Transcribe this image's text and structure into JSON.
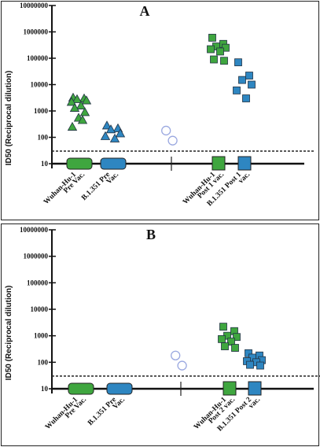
{
  "chart_data": [
    {
      "type": "scatter",
      "panel_label": "A",
      "ylabel": "ID50 (Reciprocal dilution)",
      "y_scale": "log",
      "ylim": [
        10,
        10000000
      ],
      "yticks": [
        "10",
        "100",
        "1000",
        "10000",
        "100000",
        "1000000",
        "10000000"
      ],
      "threshold": 30,
      "groups": [
        {
          "label": [
            "Wuhan-Hu-1",
            "Pre Vac."
          ],
          "color": "#3fa63f",
          "marker": "triangle",
          "pos": 1,
          "values": [
            3200,
            3000,
            2800,
            2500,
            2200,
            1600,
            1300,
            900,
            550,
            450,
            250
          ]
        },
        {
          "label": [
            "B.1.351 Pre",
            "Vac."
          ],
          "color": "#2e86c1",
          "marker": "triangle",
          "pos": 2,
          "values": [
            280,
            220,
            200,
            140,
            110,
            90
          ]
        },
        {
          "label": [],
          "color": "#9aa8e0",
          "marker": "open-circle",
          "pos": 3,
          "values": [
            180,
            75
          ]
        },
        {
          "label": [
            "Wuhan-Hu-1",
            "Post 1 vac."
          ],
          "color": "#3fa63f",
          "marker": "square",
          "pos": 4,
          "values": [
            600000,
            350000,
            280000,
            250000,
            220000,
            180000,
            90000,
            80000
          ]
        },
        {
          "label": [
            "B.1.351 Post 1",
            "vac."
          ],
          "color": "#2e86c1",
          "marker": "square",
          "pos": 5,
          "values": [
            70000,
            22000,
            15000,
            10000,
            6000,
            3000
          ]
        }
      ]
    },
    {
      "type": "scatter",
      "panel_label": "B",
      "ylabel": "ID50 (Reciprocal dilution)",
      "y_scale": "log",
      "ylim": [
        10,
        10000000
      ],
      "yticks": [
        "10",
        "100",
        "1000",
        "10000",
        "100000",
        "1000000",
        "10000000"
      ],
      "threshold": 30,
      "groups": [
        {
          "label": [
            "Wuhan-Hu-1",
            "Pre Vac."
          ],
          "color": "#3fa63f",
          "marker": "none",
          "pos": 1,
          "values": []
        },
        {
          "label": [
            "B.1.351 Pre",
            "Vac."
          ],
          "color": "#2e86c1",
          "marker": "none",
          "pos": 2,
          "values": []
        },
        {
          "label": [],
          "color": "#9aa8e0",
          "marker": "open-circle",
          "pos": 3,
          "values": [
            180,
            75
          ]
        },
        {
          "label": [
            "Wuhan-Hu-1",
            "Post 2 vac."
          ],
          "color": "#3fa63f",
          "marker": "square",
          "pos": 4,
          "values": [
            2200,
            1500,
            1000,
            900,
            750,
            600,
            400,
            350
          ]
        },
        {
          "label": [
            "B.1.351 Post 2",
            "vac."
          ],
          "color": "#2e86c1",
          "marker": "square",
          "pos": 5,
          "values": [
            220,
            180,
            150,
            120,
            110,
            100,
            80,
            75
          ]
        }
      ]
    }
  ]
}
